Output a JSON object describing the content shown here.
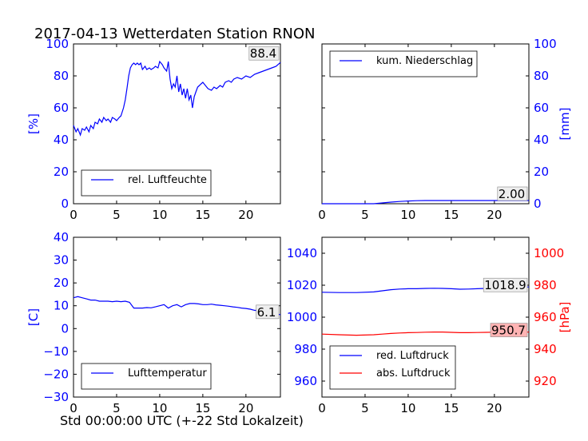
{
  "title": "2017-04-13 Wetterdaten Station RNON",
  "xlabel": "Std 00:00:00 UTC (+-22 Std Lokalzeit)",
  "colors": {
    "primary": "#0000ff",
    "secondary": "#ff0000",
    "value_box_red": "#ffb3b3",
    "value_box_gray": "#eeeeee"
  },
  "chart_data": [
    {
      "type": "line",
      "position": "top-left",
      "ylabel": "[%]",
      "xlim": [
        0,
        24
      ],
      "ylim": [
        0,
        100
      ],
      "xticks": [
        "0",
        "5",
        "10",
        "15",
        "20"
      ],
      "yticks": [
        "0",
        "20",
        "40",
        "60",
        "80",
        "100"
      ],
      "legend_position": "lower-left",
      "last_value_label": "88.4",
      "series": [
        {
          "name": "rel. Luftfeuchte",
          "color": "#0000ff",
          "x": [
            0,
            0.3,
            0.5,
            0.8,
            1,
            1.3,
            1.5,
            1.8,
            2,
            2.3,
            2.5,
            2.8,
            3,
            3.3,
            3.5,
            3.8,
            4,
            4.3,
            4.5,
            4.8,
            5,
            5.3,
            5.5,
            5.8,
            6,
            6.2,
            6.4,
            6.6,
            6.8,
            7,
            7.2,
            7.4,
            7.6,
            7.8,
            8,
            8.3,
            8.5,
            8.8,
            9,
            9.3,
            9.5,
            9.8,
            10,
            10.3,
            10.5,
            10.8,
            11,
            11.2,
            11.4,
            11.6,
            11.8,
            12,
            12.2,
            12.4,
            12.6,
            12.8,
            13,
            13.2,
            13.4,
            13.6,
            13.8,
            14,
            14.2,
            14.4,
            14.6,
            14.8,
            15,
            15.3,
            15.6,
            16,
            16.3,
            16.6,
            17,
            17.3,
            17.6,
            18,
            18.3,
            18.6,
            19,
            19.5,
            20,
            20.5,
            21,
            21.5,
            22,
            22.5,
            23,
            23.5,
            24
          ],
          "y": [
            49,
            45,
            47,
            43,
            47,
            46,
            48,
            45,
            49,
            47,
            51,
            50,
            53,
            51,
            54,
            52,
            53,
            51,
            54,
            53,
            52,
            54,
            55,
            60,
            65,
            72,
            80,
            85,
            87,
            88,
            87,
            88,
            87,
            88,
            84,
            86,
            84,
            85,
            84,
            85,
            86,
            85,
            89,
            87,
            85,
            83,
            89,
            78,
            72,
            75,
            73,
            80,
            70,
            75,
            68,
            72,
            66,
            72,
            65,
            68,
            60,
            67,
            70,
            73,
            74,
            75,
            76,
            74,
            72,
            71,
            73,
            72,
            74,
            73,
            76,
            77,
            76,
            78,
            79,
            78,
            80,
            79,
            81,
            82,
            83,
            84,
            85,
            86,
            88.4
          ]
        }
      ]
    },
    {
      "type": "line",
      "position": "top-right",
      "ylabel": "[mm]",
      "xlim": [
        0,
        24
      ],
      "ylim": [
        0,
        100
      ],
      "xticks": [
        "0",
        "5",
        "10",
        "15",
        "20"
      ],
      "yticks": [
        "0",
        "20",
        "40",
        "60",
        "80",
        "100"
      ],
      "legend_position": "upper-left",
      "last_value_label": "2.00",
      "series": [
        {
          "name": "kum. Niederschlag",
          "color": "#0000ff",
          "x": [
            0,
            6,
            7,
            8,
            9,
            10,
            11,
            12,
            24
          ],
          "y": [
            0,
            0,
            0.5,
            1.0,
            1.4,
            1.7,
            1.9,
            2.0,
            2.0
          ]
        }
      ]
    },
    {
      "type": "line",
      "position": "bottom-left",
      "ylabel": "[C]",
      "xlim": [
        0,
        24
      ],
      "ylim": [
        -30,
        40
      ],
      "xticks": [
        "0",
        "5",
        "10",
        "15",
        "20"
      ],
      "yticks": [
        "−30",
        "−20",
        "−10",
        "0",
        "10",
        "20",
        "30",
        "40"
      ],
      "legend_position": "lower-left",
      "last_value_label": "6.1",
      "series": [
        {
          "name": "Lufttemperatur",
          "color": "#0000ff",
          "x": [
            0,
            0.5,
            1,
            1.5,
            2,
            2.5,
            3,
            3.5,
            4,
            4.5,
            5,
            5.5,
            6,
            6.5,
            7,
            7.5,
            8,
            8.5,
            9,
            9.5,
            10,
            10.5,
            11,
            11.5,
            12,
            12.5,
            13,
            13.5,
            14,
            14.5,
            15,
            15.5,
            16,
            16.5,
            17,
            17.5,
            18,
            18.5,
            19,
            19.5,
            20,
            20.5,
            21,
            21.5,
            22,
            22.5,
            23,
            23.5,
            24
          ],
          "y": [
            13.5,
            14,
            13.5,
            13,
            12.5,
            12.5,
            12,
            12,
            12,
            11.8,
            12,
            11.8,
            12,
            11.5,
            9,
            9,
            9,
            9.2,
            9.1,
            9.5,
            10,
            10.5,
            9,
            10,
            10.5,
            9.5,
            10.5,
            11,
            11,
            10.8,
            10.5,
            10.5,
            10.7,
            10.4,
            10.2,
            10,
            9.8,
            9.5,
            9.3,
            9,
            8.8,
            8.5,
            8,
            7.8,
            7.5,
            7,
            6.8,
            6.4,
            6.1
          ]
        }
      ]
    },
    {
      "type": "line",
      "position": "bottom-right",
      "ylabel": "[hPa]",
      "xlim": [
        0,
        24
      ],
      "ylim_left": [
        950,
        1050
      ],
      "ylim_right": [
        910,
        1010
      ],
      "xticks": [
        "0",
        "5",
        "10",
        "15",
        "20"
      ],
      "yticks_left": [
        "960",
        "980",
        "1000",
        "1020",
        "1040"
      ],
      "yticks_right": [
        "920",
        "940",
        "960",
        "980",
        "1000"
      ],
      "legend_position": "lower-left",
      "last_value_labels": [
        "1018.9",
        "950.7"
      ],
      "series": [
        {
          "name": "red. Luftdruck",
          "color": "#0000ff",
          "axis": "left",
          "x": [
            0,
            2,
            4,
            6,
            7,
            8,
            9,
            10,
            11,
            12,
            13,
            14,
            15,
            16,
            17,
            18,
            19,
            20,
            21,
            22,
            23,
            24
          ],
          "y": [
            1015.6,
            1015.4,
            1015.4,
            1015.8,
            1016.5,
            1017.2,
            1017.6,
            1017.8,
            1017.8,
            1018.0,
            1018.1,
            1018.0,
            1017.8,
            1017.5,
            1017.6,
            1017.8,
            1018.0,
            1018.3,
            1018.5,
            1018.7,
            1018.8,
            1018.9
          ]
        },
        {
          "name": "abs. Luftdruck",
          "color": "#ff0000",
          "axis": "right",
          "x": [
            0,
            2,
            4,
            6,
            7,
            8,
            9,
            10,
            11,
            12,
            13,
            14,
            15,
            16,
            17,
            18,
            19,
            20,
            21,
            22,
            23,
            24
          ],
          "y": [
            949.4,
            949.0,
            948.7,
            949.0,
            949.4,
            949.8,
            950.1,
            950.3,
            950.4,
            950.6,
            950.7,
            950.7,
            950.5,
            950.3,
            950.3,
            950.4,
            950.5,
            950.6,
            950.6,
            950.7,
            950.7,
            950.7
          ]
        }
      ]
    }
  ]
}
